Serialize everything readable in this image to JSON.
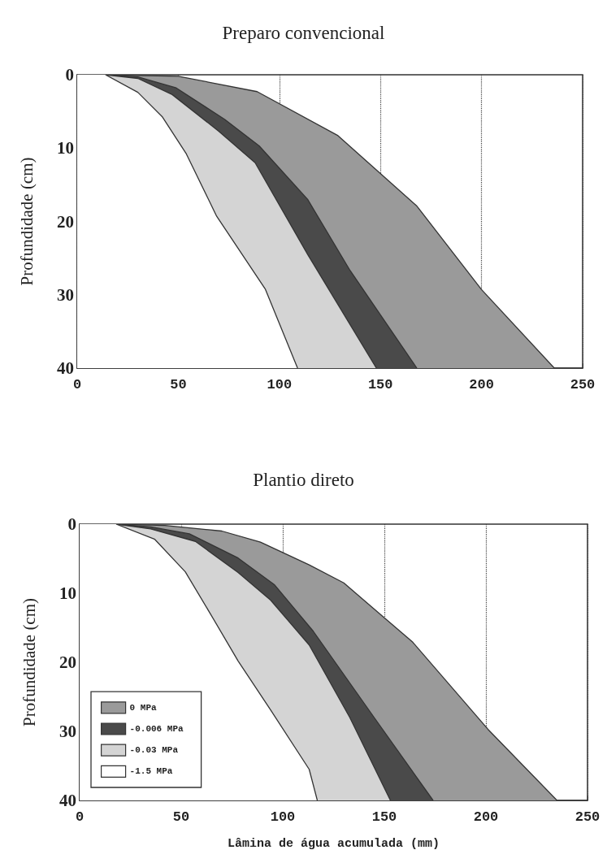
{
  "chart_data": [
    {
      "type": "area",
      "orientation": "horizontal",
      "title": "Preparo convencional",
      "ylabel": "Profundidade (cm)",
      "xlim": [
        0,
        250
      ],
      "xticks": [
        0,
        50,
        100,
        150,
        200,
        250
      ],
      "ylim": [
        40,
        0
      ],
      "yticks": [
        0,
        10,
        20,
        30,
        40
      ],
      "grid": "x",
      "legend": false,
      "series": [
        {
          "color": "#9a9a9a",
          "x": [
            0,
            0.2,
            2.3,
            8.3,
            17.9,
            29.3,
            40
          ],
          "values": [
            14,
            50,
            89,
            129,
            168,
            200,
            236
          ]
        },
        {
          "color": "#4a4a4a",
          "x": [
            0,
            0.3,
            1.8,
            6.1,
            9.7,
            17,
            26.7,
            40
          ],
          "values": [
            14,
            30,
            49,
            73,
            90,
            114,
            135,
            168
          ]
        },
        {
          "color": "#d4d4d4",
          "x": [
            0,
            0.5,
            2.7,
            7.7,
            12,
            24.5,
            40
          ],
          "values": [
            14,
            30,
            47,
            70,
            88,
            114,
            148
          ]
        },
        {
          "color": "#ffffff",
          "x": [
            0,
            2.4,
            5.7,
            10.8,
            19.3,
            29.2,
            40
          ],
          "values": [
            14,
            30,
            42,
            54,
            69,
            93,
            109
          ]
        }
      ]
    },
    {
      "type": "area",
      "orientation": "horizontal",
      "title": "Plantio direto",
      "xlabel": "Lâmina de água acumulada (mm)",
      "ylabel": "Profundidade (cm)",
      "xlim": [
        0,
        250
      ],
      "xticks": [
        0,
        50,
        100,
        150,
        200,
        250
      ],
      "ylim": [
        40,
        0
      ],
      "yticks": [
        0,
        10,
        20,
        30,
        40
      ],
      "grid": "x",
      "legend": "bottom left",
      "series": [
        {
          "name": "0 MPa",
          "color": "#9a9a9a",
          "x": [
            0,
            0.2,
            1,
            2.6,
            5.9,
            8.5,
            17.1,
            29.7,
            40
          ],
          "values": [
            18,
            42,
            70,
            89,
            113,
            130,
            164,
            201,
            235
          ]
        },
        {
          "name": "-0.006 MPa",
          "color": "#4a4a4a",
          "x": [
            0,
            0.4,
            1.4,
            4.9,
            8.8,
            15.5,
            28,
            40
          ],
          "values": [
            18,
            35,
            54,
            78,
            96,
            115,
            145,
            174
          ]
        },
        {
          "name": "-0.03 MPa",
          "color": "#d4d4d4",
          "x": [
            0,
            0.7,
            2.5,
            7,
            11,
            17.5,
            28,
            40
          ],
          "values": [
            18,
            35,
            57,
            78,
            94,
            113,
            133,
            153
          ]
        },
        {
          "name": "-1.5 MPa",
          "color": "#ffffff",
          "x": [
            0,
            2.2,
            6.9,
            12.8,
            19.8,
            26.9,
            35.5,
            40
          ],
          "values": [
            18,
            37,
            52,
            64,
            78,
            94,
            113,
            117
          ]
        }
      ]
    }
  ]
}
